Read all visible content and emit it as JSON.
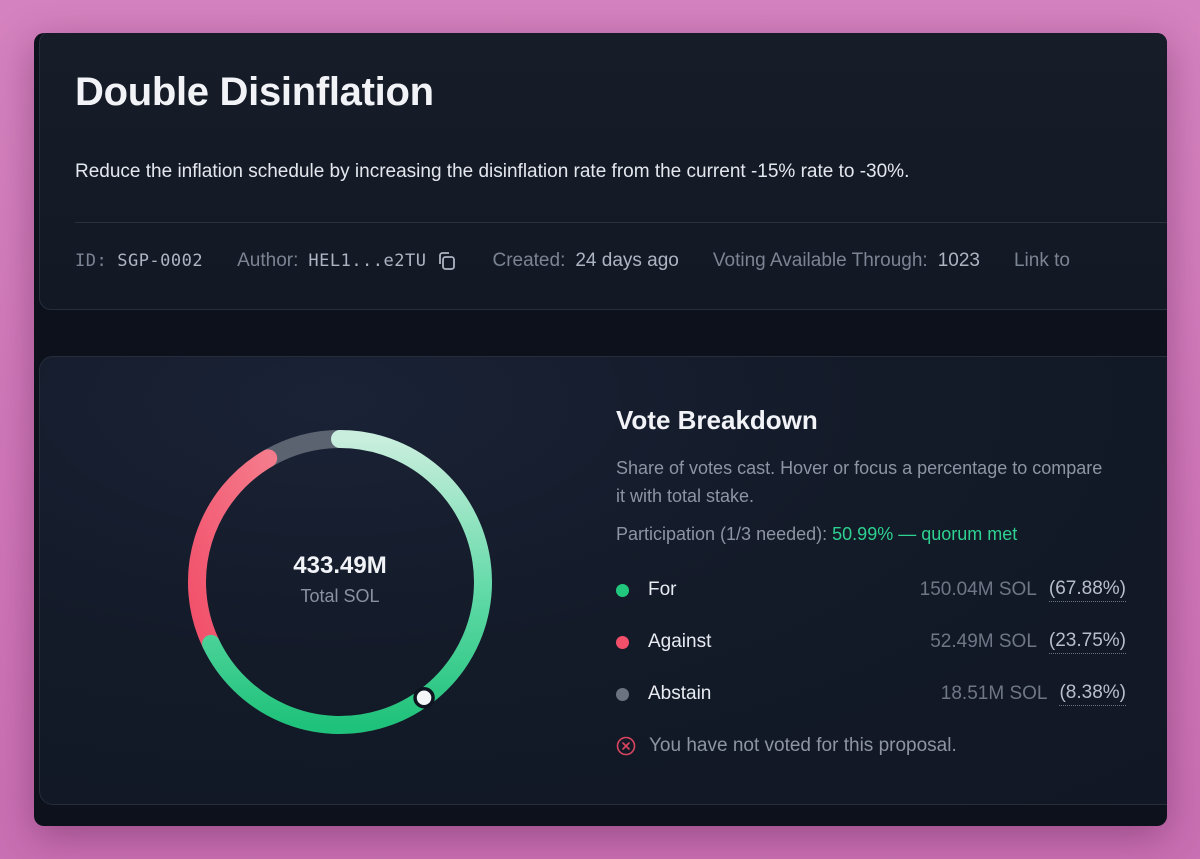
{
  "proposal": {
    "title": "Double Disinflation",
    "description": "Reduce the inflation schedule by increasing the disinflation rate from the current -15% rate to -30%.",
    "meta": {
      "id_label": "ID:",
      "id_value": "SGP-0002",
      "author_label": "Author:",
      "author_value": "HEL1...e2TU",
      "created_label": "Created:",
      "created_value": "24 days ago",
      "voting_label": "Voting Available Through:",
      "voting_value": "1023",
      "link_label": "Link to"
    }
  },
  "vote_breakdown": {
    "title": "Vote Breakdown",
    "subtitle": "Share of votes cast. Hover or focus a percentage to compare it with total stake.",
    "participation_label": "Participation (1/3 needed):",
    "participation_value": "50.99% — quorum met",
    "total_value": "433.49M",
    "total_caption": "Total SOL",
    "votes": [
      {
        "name": "For",
        "amount": "150.04M SOL",
        "percent": "(67.88%)",
        "fraction": 0.6788,
        "color": "#22c77e"
      },
      {
        "name": "Against",
        "amount": "52.49M SOL",
        "percent": "(23.75%)",
        "fraction": 0.2375,
        "color": "#f2506a"
      },
      {
        "name": "Abstain",
        "amount": "18.51M SOL",
        "percent": "(8.38%)",
        "fraction": 0.0838,
        "color": "#6b7280"
      }
    ],
    "participation_fraction": 0.5099,
    "not_voted_message": "You have not voted for this proposal."
  },
  "icons": {
    "copy": "copy-icon",
    "not_voted": "x-circle-icon"
  },
  "colors": {
    "quorum": "#2ed190",
    "for": "#22c77e",
    "against": "#f2506a",
    "abstain": "#6b7280"
  }
}
